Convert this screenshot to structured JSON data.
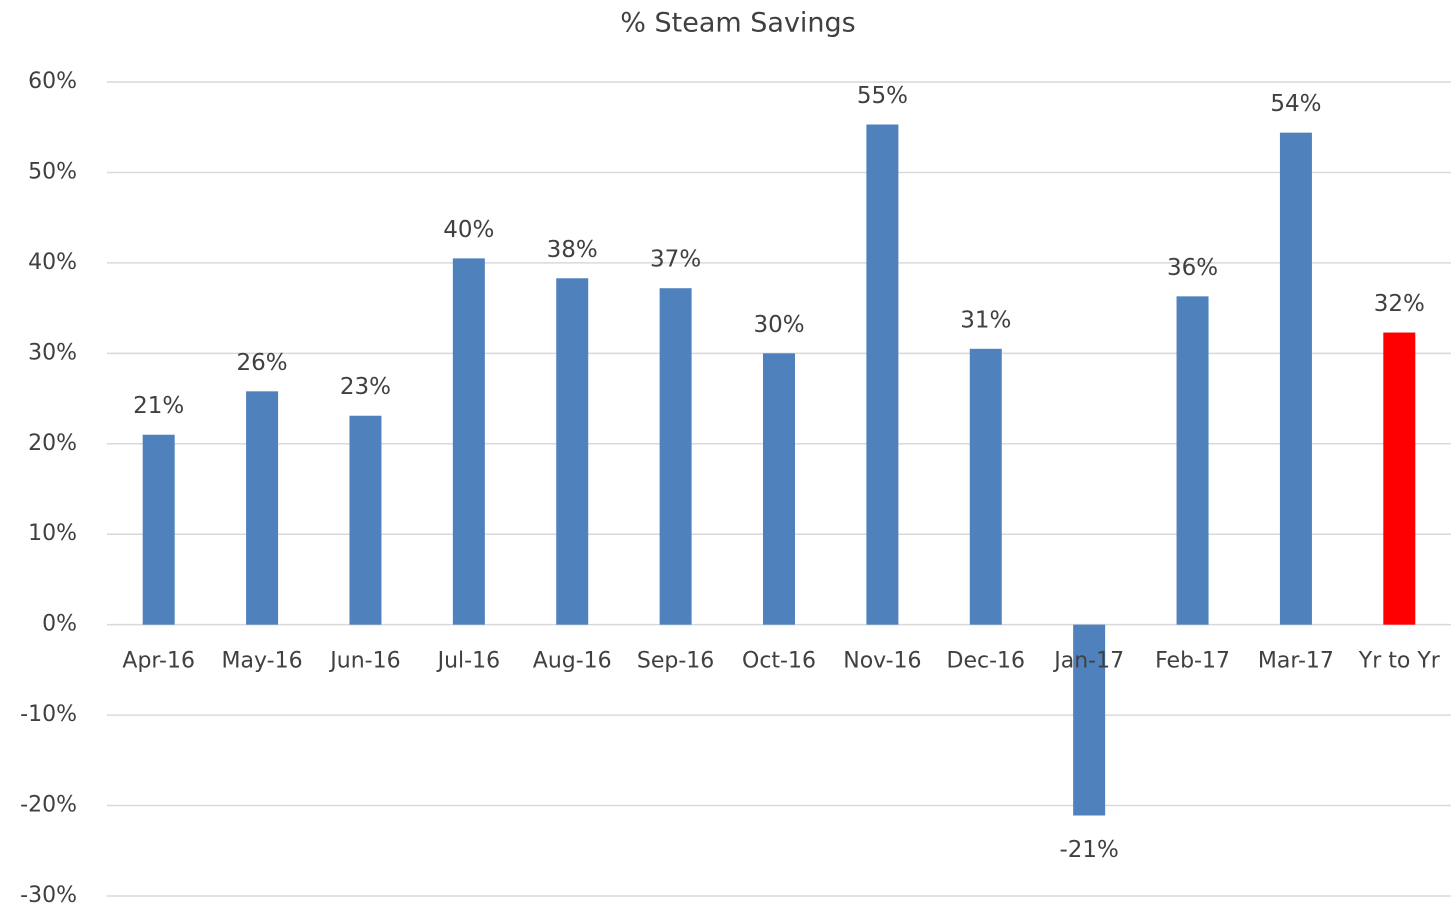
{
  "chart_data": {
    "type": "bar",
    "title": "% Steam Savings",
    "categories": [
      "Apr-16",
      "May-16",
      "Jun-16",
      "Jul-16",
      "Aug-16",
      "Sep-16",
      "Oct-16",
      "Nov-16",
      "Dec-16",
      "Jan-17",
      "Feb-17",
      "Mar-17",
      "Yr to Yr"
    ],
    "values": [
      21,
      25.8,
      23.1,
      40.5,
      38.3,
      37.2,
      30,
      55.3,
      30.5,
      -21.1,
      36.3,
      54.4,
      32.3
    ],
    "value_labels": [
      "21%",
      "26%",
      "23%",
      "40%",
      "38%",
      "37%",
      "30%",
      "55%",
      "31%",
      "-21%",
      "36%",
      "54%",
      "32%"
    ],
    "colors": [
      "#4f81bd",
      "#4f81bd",
      "#4f81bd",
      "#4f81bd",
      "#4f81bd",
      "#4f81bd",
      "#4f81bd",
      "#4f81bd",
      "#4f81bd",
      "#4f81bd",
      "#4f81bd",
      "#4f81bd",
      "#ff0000"
    ],
    "ylim": [
      -30,
      60
    ],
    "yticks": [
      {
        "value": -30,
        "label": "-30%"
      },
      {
        "value": -20,
        "label": "-20%"
      },
      {
        "value": -10,
        "label": "-10%"
      },
      {
        "value": 0,
        "label": "0%"
      },
      {
        "value": 10,
        "label": "10%"
      },
      {
        "value": 20,
        "label": "20%"
      },
      {
        "value": 30,
        "label": "30%"
      },
      {
        "value": 40,
        "label": "40%"
      },
      {
        "value": 50,
        "label": "50%"
      },
      {
        "value": 60,
        "label": "60%"
      }
    ],
    "grid": true
  }
}
